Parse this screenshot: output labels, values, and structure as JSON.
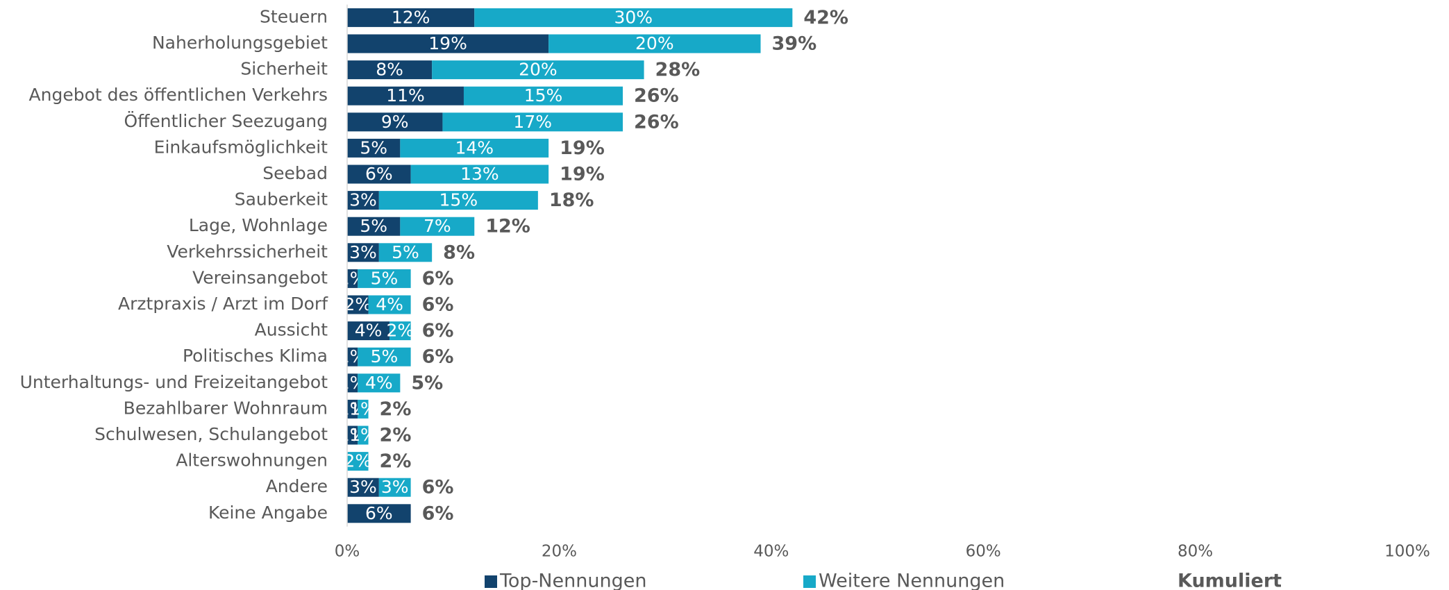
{
  "chart_data": {
    "type": "stacked-barh",
    "categories": [
      "Steuern",
      "Naherholungsgebiet",
      "Sicherheit",
      "Angebot des öffentlichen Verkehrs",
      "Öffentlicher Seezugang",
      "Einkaufsmöglichkeit",
      "Seebad",
      "Sauberkeit",
      "Lage, Wohnlage",
      "Verkehrssicherheit",
      "Vereinsangebot",
      "Arztpraxis / Arzt im Dorf",
      "Aussicht",
      "Politisches Klima",
      "Unterhaltungs- und Freizeitangebot",
      "Bezahlbarer Wohnraum",
      "Schulwesen, Schulangebot",
      "Alterswohnungen",
      "Andere",
      "Keine Angabe"
    ],
    "series": [
      {
        "name": "Top-Nennungen",
        "color": "#12436d",
        "values": [
          12,
          19,
          8,
          11,
          9,
          5,
          6,
          3,
          5,
          3,
          1,
          2,
          4,
          1,
          1,
          1,
          1,
          0,
          3,
          6
        ],
        "value_labels": [
          "12%",
          "19%",
          "8%",
          "11%",
          "9%",
          "5%",
          "6%",
          "3%",
          "5%",
          "3%",
          "1%",
          "2%",
          "4%",
          "1%",
          "1%",
          "1%",
          "1%",
          null,
          "3%",
          "6%"
        ]
      },
      {
        "name": "Weitere Nennungen",
        "color": "#17a9c8",
        "values": [
          30,
          20,
          20,
          15,
          17,
          14,
          13,
          15,
          7,
          5,
          5,
          4,
          2,
          5,
          4,
          1,
          1,
          2,
          3,
          0
        ],
        "value_labels": [
          "30%",
          "20%",
          "20%",
          "15%",
          "17%",
          "14%",
          "13%",
          "15%",
          "7%",
          "5%",
          "5%",
          "4%",
          "2%",
          "5%",
          "4%",
          "1%",
          "1%",
          "2%",
          "3%",
          null
        ]
      }
    ],
    "totals": {
      "name": "Kumuliert",
      "values": [
        42,
        39,
        28,
        26,
        26,
        19,
        19,
        18,
        12,
        8,
        6,
        6,
        6,
        6,
        5,
        2,
        2,
        2,
        6,
        6
      ],
      "value_labels": [
        "42%",
        "39%",
        "28%",
        "26%",
        "26%",
        "19%",
        "19%",
        "18%",
        "12%",
        "8%",
        "6%",
        "6%",
        "6%",
        "6%",
        "5%",
        "2%",
        "2%",
        "2%",
        "6%",
        "6%"
      ]
    },
    "xlim": [
      0,
      100
    ],
    "xticks": [
      {
        "value": 0,
        "label": "0%"
      },
      {
        "value": 20,
        "label": "20%"
      },
      {
        "value": 40,
        "label": "40%"
      },
      {
        "value": 60,
        "label": "60%"
      },
      {
        "value": 80,
        "label": "80%"
      },
      {
        "value": 100,
        "label": "100%"
      }
    ]
  }
}
